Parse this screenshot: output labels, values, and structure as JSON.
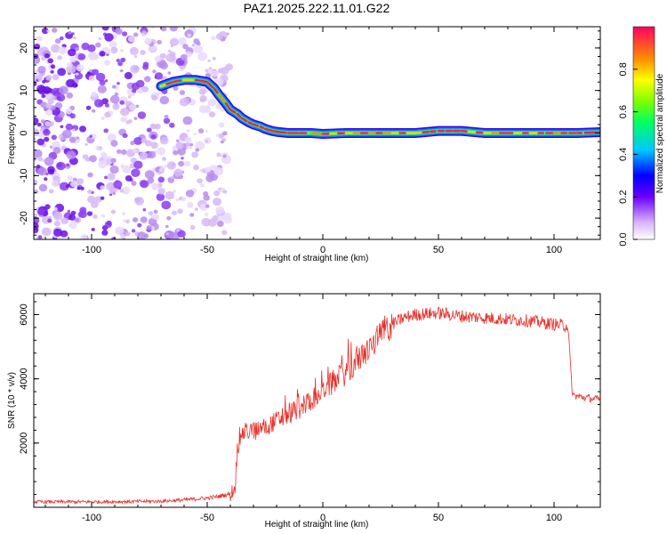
{
  "title": "PAZ1.2025.222.11.01.G22",
  "chart_data": [
    {
      "type": "heatmap",
      "xlabel": "Height of straight line (km)",
      "ylabel": "Frequency (Hz)",
      "xlim": [
        -125,
        120
      ],
      "ylim": [
        -25,
        25
      ],
      "x_ticks": [
        "-100",
        "-50",
        "0",
        "50",
        "100"
      ],
      "y_ticks": [
        "20",
        "10",
        "0",
        "-10",
        "-20"
      ],
      "colorbar": {
        "label": "Normalized spectral amplitude",
        "range": [
          0,
          1
        ],
        "ticks": [
          "0.0",
          "0.2",
          "0.4",
          "0.6",
          "0.8"
        ]
      },
      "ridge": {
        "x": [
          -70,
          -65,
          -60,
          -55,
          -50,
          -47,
          -45,
          -42,
          -40,
          -37,
          -35,
          -32,
          -30,
          -27,
          -25,
          -22,
          -20,
          -15,
          -10,
          -5,
          0,
          10,
          20,
          30,
          40,
          50,
          60,
          70,
          80,
          90,
          100,
          110,
          120
        ],
        "y": [
          11,
          12,
          12.5,
          12.5,
          12,
          10.5,
          9,
          7,
          5.5,
          4.5,
          3.5,
          2.5,
          2,
          1.5,
          1,
          0.5,
          0.3,
          0,
          0,
          0,
          -0.2,
          0,
          0,
          0,
          0,
          0.5,
          0.5,
          0,
          0,
          0,
          0,
          0,
          0.2
        ]
      },
      "noise_region_x": [
        -125,
        -45
      ]
    },
    {
      "type": "line",
      "xlabel": "Height of straight line (km)",
      "ylabel": "SNR (10 * v/v)",
      "xlim": [
        -125,
        120
      ],
      "ylim": [
        0,
        6650
      ],
      "x_ticks": [
        "-100",
        "-50",
        "0",
        "50",
        "100"
      ],
      "y_ticks": [
        "2000",
        "4000",
        "6000"
      ],
      "color": "#e8302a",
      "series": [
        {
          "x": [
            -125,
            -100,
            -80,
            -70,
            -60,
            -50,
            -45,
            -40,
            -38,
            -37,
            -35,
            -30,
            -25,
            -20,
            -15,
            -10,
            -5,
            0,
            5,
            10,
            15,
            20,
            25,
            30,
            35,
            40,
            50,
            60,
            70,
            80,
            90,
            100,
            106,
            107,
            108,
            110,
            115,
            120
          ],
          "y": [
            170,
            170,
            180,
            190,
            230,
            290,
            340,
            420,
            600,
            1800,
            2300,
            2400,
            2500,
            2700,
            2900,
            3100,
            3350,
            3650,
            3900,
            4200,
            4550,
            4950,
            5350,
            5700,
            5900,
            6000,
            6050,
            5950,
            5900,
            5850,
            5800,
            5700,
            5650,
            4500,
            3500,
            3450,
            3400,
            3350
          ]
        }
      ]
    }
  ]
}
